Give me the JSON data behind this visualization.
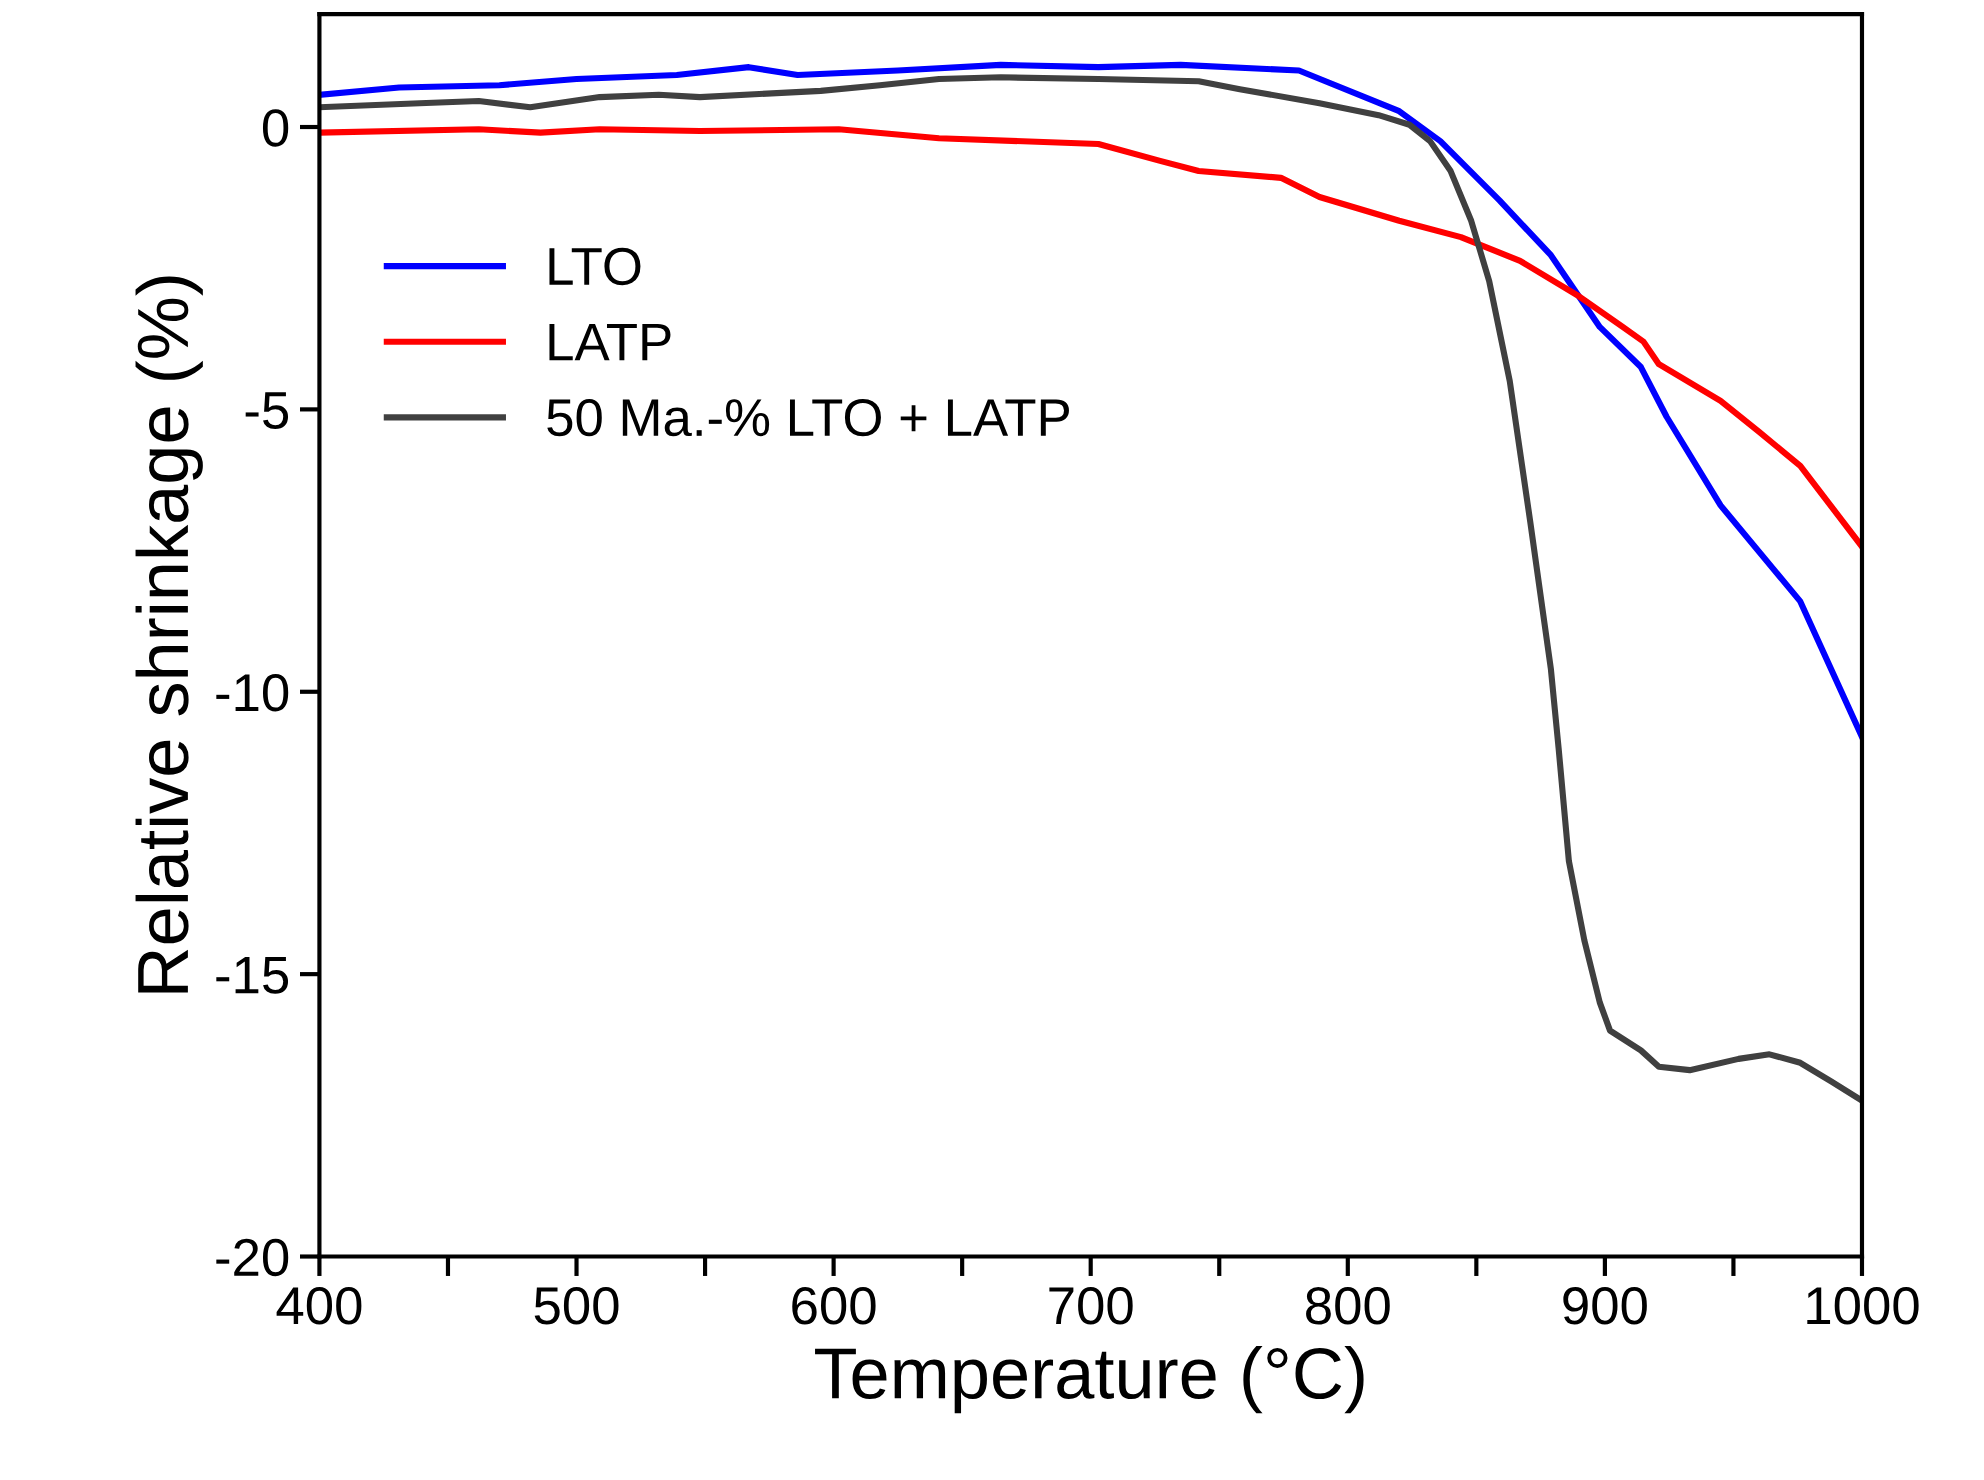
{
  "chart_data": {
    "type": "line",
    "xlabel": "Temperature (°C)",
    "ylabel": "Relative shrinkage (%)",
    "xlim": [
      400,
      1000
    ],
    "ylim": [
      -20,
      2
    ],
    "xticks": [
      400,
      {
        "value": 450,
        "label": null
      },
      500,
      {
        "value": 550,
        "label": null
      },
      600,
      {
        "value": 650,
        "label": null
      },
      700,
      {
        "value": 750,
        "label": null
      },
      800,
      {
        "value": 850,
        "label": null
      },
      900,
      {
        "value": 950,
        "label": null
      },
      1000
    ],
    "yticks": [
      -20,
      -15,
      -10,
      -5,
      0
    ],
    "grid": false,
    "legend": "top left",
    "line_style": "solid",
    "marker": "none",
    "series": [
      {
        "name": "LTO",
        "color": "#0000ff",
        "x": [
          400,
          431,
          470,
          500,
          539,
          567,
          586,
          625,
          665,
          703,
          735,
          781,
          820,
          836,
          859,
          879,
          898,
          914,
          924,
          945,
          976,
          1000
        ],
        "values": [
          0.57,
          0.7,
          0.74,
          0.85,
          0.92,
          1.06,
          0.92,
          1.0,
          1.1,
          1.06,
          1.1,
          1.0,
          0.28,
          -0.25,
          -1.3,
          -2.27,
          -3.54,
          -4.25,
          -5.13,
          -6.7,
          -8.4,
          -10.8
        ]
      },
      {
        "name": "LATP",
        "color": "#ff0000",
        "x": [
          400,
          462,
          486,
          509,
          548,
          602,
          641,
          703,
          727,
          742,
          774,
          789,
          820,
          844,
          867,
          890,
          907,
          915,
          921,
          945,
          960,
          976,
          1000
        ],
        "values": [
          -0.1,
          -0.04,
          -0.1,
          -0.04,
          -0.07,
          -0.04,
          -0.2,
          -0.3,
          -0.6,
          -0.78,
          -0.9,
          -1.24,
          -1.66,
          -1.95,
          -2.37,
          -3.0,
          -3.54,
          -3.8,
          -4.2,
          -4.85,
          -5.4,
          -6.0,
          -7.43
        ]
      },
      {
        "name": "50 Ma.-% LTO + LATP",
        "color": "#404040",
        "x": [
          400,
          439,
          462,
          482,
          509,
          532,
          548,
          595,
          618,
          641,
          665,
          703,
          742,
          758,
          789,
          812,
          824,
          832,
          840,
          848,
          855,
          863,
          871,
          879,
          882,
          886,
          892,
          898,
          902,
          914,
          921,
          933,
          952,
          964,
          976,
          988,
          1000
        ],
        "values": [
          0.35,
          0.42,
          0.46,
          0.35,
          0.53,
          0.57,
          0.53,
          0.64,
          0.74,
          0.85,
          0.88,
          0.85,
          0.81,
          0.67,
          0.42,
          0.21,
          0.04,
          -0.25,
          -0.78,
          -1.66,
          -2.73,
          -4.5,
          -7.0,
          -9.6,
          -11.0,
          -13.0,
          -14.4,
          -15.5,
          -16.0,
          -16.35,
          -16.64,
          -16.7,
          -16.5,
          -16.42,
          -16.57,
          -16.9,
          -17.24
        ]
      }
    ]
  }
}
